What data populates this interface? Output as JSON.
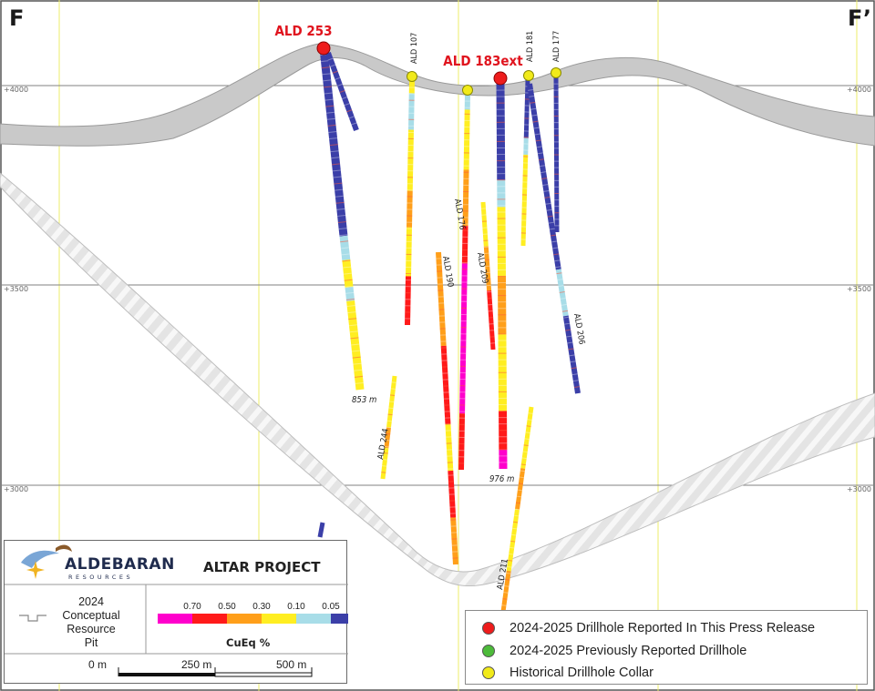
{
  "section": {
    "left_label": "F",
    "right_label": "F’",
    "elev_labels": [
      "+4000",
      "+3500",
      "+3000"
    ]
  },
  "holes": {
    "ald253": "ALD 253",
    "ald183ext": "ALD 183ext",
    "ald107": "ALD 107",
    "ald181": "ALD 181",
    "ald177": "ALD 177",
    "ald176": "ALD 176",
    "ald190": "ALD 190",
    "ald209": "ALD 209",
    "ald206": "ALD 206",
    "ald244": "ALD 244",
    "ald211": "ALD 211"
  },
  "depths": {
    "ald253": "853 m",
    "ald183ext": "976 m"
  },
  "info": {
    "company": "ALDEBARAN",
    "company_sub": "RESOURCES",
    "project": "ALTAR PROJECT",
    "pit_line1": "2024",
    "pit_line2": "Conceptual",
    "pit_line3": "Resource Pit",
    "color_ticks": [
      "0.70",
      "0.50",
      "0.30",
      "0.10",
      "0.05"
    ],
    "scale_title": "CuEq %",
    "scale_colors": [
      "#ff00cc",
      "#ff1a1a",
      "#ff9f1a",
      "#ffee22",
      "#a8dde8",
      "#3b3fa8"
    ],
    "bar_labels": [
      "0 m",
      "250 m",
      "500 m"
    ]
  },
  "legend": {
    "reported": "2024-2025 Drillhole Reported In This Press Release",
    "previous": "2024-2025 Previously Reported Drillhole",
    "historical": "Historical Drillhole Collar",
    "colors": {
      "reported": "#ee1c1c",
      "previous": "#4dbb3a",
      "historical": "#f1ea1a"
    }
  }
}
